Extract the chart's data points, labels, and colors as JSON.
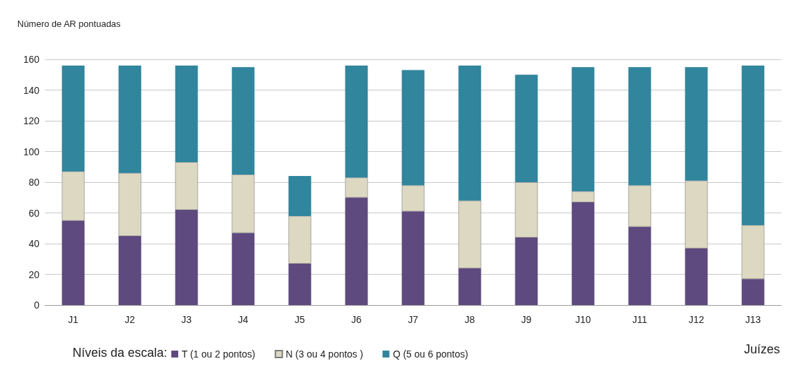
{
  "chart_data": {
    "type": "bar",
    "stacked": true,
    "ylabel": "Número de AR pontuadas",
    "xlabel": "Juízes",
    "legend_title": "Níveis da escala:",
    "categories": [
      "J1",
      "J2",
      "J3",
      "J4",
      "J5",
      "J6",
      "J7",
      "J8",
      "J9",
      "J10",
      "J11",
      "J12",
      "J13"
    ],
    "series": [
      {
        "name": "T (1 ou 2 pontos)",
        "color": "#5e4a7e",
        "values": [
          55,
          45,
          62,
          47,
          27,
          70,
          61,
          24,
          44,
          67,
          51,
          37,
          17
        ]
      },
      {
        "name": "N (3 ou 4 pontos )",
        "color": "#ddd8c1",
        "values": [
          32,
          41,
          31,
          38,
          31,
          13,
          17,
          44,
          36,
          7,
          27,
          44,
          35
        ]
      },
      {
        "name": "Q (5 ou 6 pontos)",
        "color": "#31859c",
        "values": [
          69,
          70,
          63,
          70,
          26,
          73,
          75,
          88,
          70,
          81,
          77,
          74,
          104
        ]
      }
    ],
    "ylim": [
      0,
      160
    ],
    "yticks": [
      0,
      20,
      40,
      60,
      80,
      100,
      120,
      140,
      160
    ],
    "grid": "y",
    "legend": "bottom"
  }
}
